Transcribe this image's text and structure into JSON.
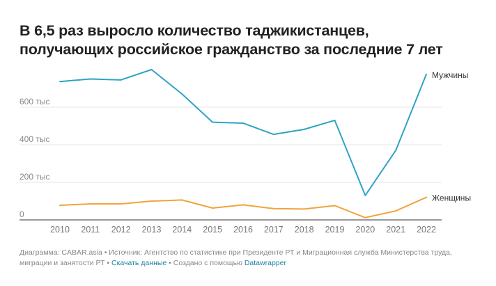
{
  "title_line1": "В 6,5 раз выросло количество таджикистанцев,",
  "title_line2": "получающих российское гражданство за последние 7 лет",
  "footer": {
    "text1": "Диаграмма: CABAR.asia • Источник: Агентство по статистике при Президенте РТ и Миграционная служба Министерства труда, миграции и занятости РТ • ",
    "download_link": "Скачать данные",
    "text2": " • Создано с помощью ",
    "datawrapper_link": "Datawrapper"
  },
  "colors": {
    "men": "#2ea3c5",
    "women": "#f2a33a",
    "grid": "#e6e6e6",
    "axis": "#333333"
  },
  "chart_data": {
    "type": "line",
    "x": [
      2010,
      2011,
      2012,
      2013,
      2014,
      2015,
      2016,
      2017,
      2018,
      2019,
      2020,
      2021,
      2022
    ],
    "ylim": [
      0,
      800
    ],
    "yticks": [
      0,
      200,
      400,
      600
    ],
    "ytick_labels": [
      "0",
      "200 тыс",
      "400 тыс",
      "600 тыс"
    ],
    "grid": true,
    "series": [
      {
        "name": "Мужчины",
        "values": [
          736,
          750,
          745,
          800,
          670,
          520,
          515,
          455,
          482,
          530,
          130,
          370,
          775
        ]
      },
      {
        "name": "Женщины",
        "values": [
          78,
          85,
          85,
          100,
          106,
          63,
          80,
          60,
          58,
          76,
          12,
          48,
          120
        ]
      }
    ]
  }
}
